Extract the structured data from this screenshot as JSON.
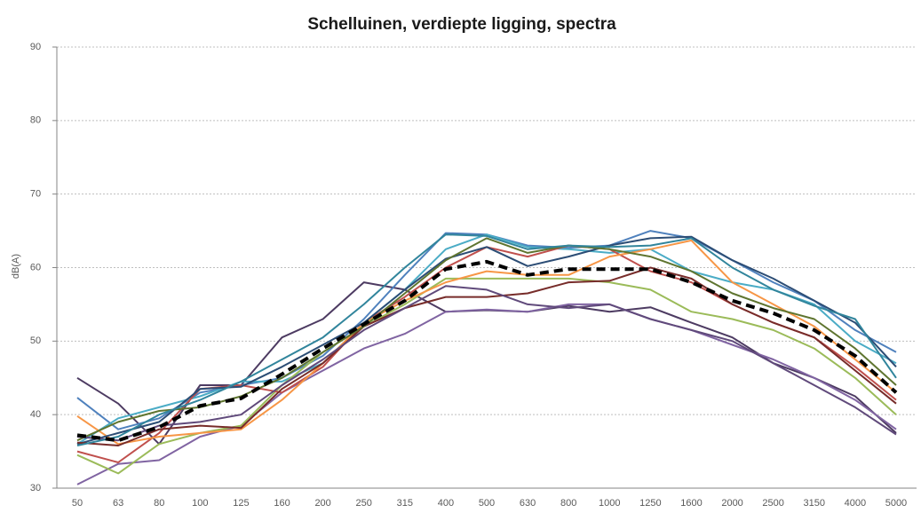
{
  "chart_data": {
    "type": "line",
    "title": "Schelluinen, verdiepte ligging, spectra",
    "y_label": "dB(A)",
    "categories": [
      "50",
      "63",
      "80",
      "100",
      "125",
      "160",
      "200",
      "250",
      "315",
      "400",
      "500",
      "630",
      "800",
      "1000",
      "1250",
      "1600",
      "2000",
      "2500",
      "3150",
      "4000",
      "5000"
    ],
    "ylim": [
      30,
      90
    ],
    "yticks": [
      30,
      40,
      50,
      60,
      70,
      80,
      90
    ],
    "grid": true,
    "series": [
      {
        "color": "#4d3b62",
        "values": [
          45,
          41.5,
          36,
          44,
          44,
          50.5,
          53,
          58,
          57,
          54,
          54.2,
          54,
          54.8,
          54,
          54.6,
          52.5,
          50.5,
          47,
          45,
          42.5,
          37.5
        ]
      },
      {
        "color": "#8064a2",
        "values": [
          30.5,
          33.3,
          33.8,
          37,
          38.5,
          43,
          46,
          49,
          51,
          54,
          54.3,
          54,
          55,
          55,
          53,
          51.5,
          49.5,
          47.5,
          45,
          42,
          38
        ]
      },
      {
        "color": "#4f81bd",
        "values": [
          42.3,
          38,
          39.5,
          43,
          44,
          45,
          48,
          53,
          59,
          64.7,
          64.5,
          63,
          62.7,
          63,
          65,
          64,
          61,
          58,
          55.5,
          51.5,
          48.5
        ]
      },
      {
        "color": "#4bacc6",
        "values": [
          36,
          39.5,
          41,
          42.5,
          44.5,
          44.5,
          47,
          52.5,
          57,
          62.5,
          64.5,
          62.8,
          62.5,
          62,
          62.5,
          59.5,
          58,
          57,
          55,
          50,
          47
        ]
      },
      {
        "color": "#9bbb59",
        "values": [
          34.5,
          32,
          36,
          37.5,
          38.5,
          44,
          48.5,
          52,
          55,
          58.5,
          58.5,
          58.5,
          58.5,
          58,
          57,
          54,
          53,
          51.5,
          49,
          45,
          40
        ]
      },
      {
        "color": "#c0504d",
        "values": [
          35,
          33.5,
          37.5,
          43.5,
          44,
          43,
          46.5,
          52.5,
          56,
          60,
          62.8,
          61.5,
          63,
          62.5,
          59.5,
          58,
          55,
          52.5,
          50.5,
          46.5,
          42
        ]
      },
      {
        "color": "#f79646",
        "values": [
          39.8,
          36,
          37,
          37.5,
          38,
          42,
          47,
          52.5,
          55.5,
          58,
          59.5,
          59,
          59,
          61.5,
          62.5,
          63.7,
          58,
          55,
          52,
          47.5,
          43
        ]
      },
      {
        "color": "#2c4d75",
        "values": [
          36,
          37.5,
          39,
          43.5,
          43.8,
          46.5,
          49.5,
          52.5,
          57,
          61.2,
          62.8,
          60.2,
          61.5,
          63,
          64,
          64.2,
          61,
          58.5,
          55.5,
          52.5,
          46.5
        ]
      },
      {
        "color": "#772c2a",
        "values": [
          36.2,
          35.8,
          38,
          38.5,
          38.2,
          43.5,
          47,
          52,
          54.5,
          56,
          56,
          56.5,
          58,
          58.2,
          60,
          58.5,
          55,
          52.5,
          50.5,
          46,
          41.5
        ]
      },
      {
        "color": "#5f7530",
        "values": [
          36.5,
          39,
          40.5,
          41,
          42.5,
          45,
          48.5,
          52,
          56.5,
          61,
          64,
          62,
          63,
          62.5,
          61.5,
          59.5,
          56.5,
          54.5,
          53,
          49,
          44
        ]
      },
      {
        "color": "#604a7b",
        "values": [
          37,
          36.5,
          38.5,
          39,
          40,
          44,
          47.5,
          51.5,
          54.5,
          57.5,
          57,
          55,
          54.5,
          55,
          53,
          51.5,
          50,
          47,
          44,
          41,
          37.3
        ]
      },
      {
        "color": "#31859c",
        "values": [
          35.8,
          37,
          40,
          42,
          44.5,
          47.5,
          50.5,
          55,
          60,
          64.5,
          64.3,
          62.5,
          63,
          62.8,
          63,
          64,
          60,
          57,
          54.8,
          53,
          45
        ]
      },
      {
        "color": "#000000",
        "dashed": true,
        "values": [
          37.2,
          36.5,
          38.3,
          41.2,
          42.2,
          45.5,
          49,
          52.3,
          55.5,
          59.8,
          60.8,
          59,
          59.8,
          59.8,
          59.8,
          58,
          55.5,
          53.8,
          51.5,
          48,
          43
        ]
      }
    ]
  }
}
